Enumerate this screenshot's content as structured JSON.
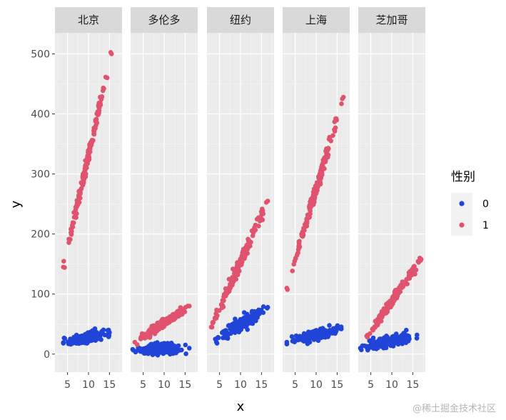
{
  "chart_data": {
    "type": "scatter",
    "facets": [
      "北京",
      "多伦多",
      "纽约",
      "上海",
      "芝加哥"
    ],
    "xlabel": "x",
    "ylabel": "y",
    "xlim": [
      2,
      18
    ],
    "ylim": [
      -30,
      535
    ],
    "x_ticks": [
      5,
      10,
      15
    ],
    "y_ticks": [
      0,
      100,
      200,
      300,
      400,
      500
    ],
    "grid": true,
    "legend": {
      "title": "性别",
      "position": "right",
      "entries": [
        {
          "label": "0",
          "color": "#2144D8"
        },
        {
          "label": "1",
          "color": "#E0536E"
        }
      ]
    },
    "series": [
      {
        "group": "0",
        "color": "#2144D8",
        "panels": [
          {
            "facet": "北京",
            "x_range": [
              4,
              15
            ],
            "y_range": [
              14,
              45
            ],
            "fit": [
              [
                4,
                18
              ],
              [
                15,
                36
              ]
            ],
            "spread": 9
          },
          {
            "facet": "多伦多",
            "x_range": [
              2.5,
              16
            ],
            "y_range": [
              -5,
              25
            ],
            "fit": [
              [
                2.5,
                8
              ],
              [
                16,
                10
              ]
            ],
            "spread": 10
          },
          {
            "facet": "纽约",
            "x_range": [
              4,
              16.5
            ],
            "y_range": [
              18,
              85
            ],
            "fit": [
              [
                4,
                25
              ],
              [
                16.5,
                78
              ]
            ],
            "spread": 12
          },
          {
            "facet": "上海",
            "x_range": [
              3,
              16
            ],
            "y_range": [
              15,
              58
            ],
            "fit": [
              [
                3,
                20
              ],
              [
                16,
                42
              ]
            ],
            "spread": 10
          },
          {
            "facet": "芝加哥",
            "x_range": [
              2.5,
              16
            ],
            "y_range": [
              5,
              40
            ],
            "fit": [
              [
                2.5,
                10
              ],
              [
                16,
                32
              ]
            ],
            "spread": 10
          }
        ]
      },
      {
        "group": "1",
        "color": "#E0536E",
        "panels": [
          {
            "facet": "北京",
            "x_range": [
              4,
              15.5
            ],
            "y_range": [
              142,
              505
            ],
            "fit": [
              [
                4,
                145
              ],
              [
                15.5,
                500
              ]
            ],
            "spread": 12
          },
          {
            "facet": "多伦多",
            "x_range": [
              3,
              16
            ],
            "y_range": [
              15,
              88
            ],
            "fit": [
              [
                3,
                20
              ],
              [
                16,
                80
              ]
            ],
            "spread": 8
          },
          {
            "facet": "纽约",
            "x_range": [
              3,
              16.5
            ],
            "y_range": [
              42,
              258
            ],
            "fit": [
              [
                3,
                45
              ],
              [
                16.5,
                255
              ]
            ],
            "spread": 12
          },
          {
            "facet": "上海",
            "x_range": [
              3,
              16.5
            ],
            "y_range": [
              85,
              430
            ],
            "fit": [
              [
                3,
                110
              ],
              [
                16.5,
                428
              ]
            ],
            "spread": 12
          },
          {
            "facet": "芝加哥",
            "x_range": [
              4,
              17
            ],
            "y_range": [
              25,
              160
            ],
            "fit": [
              [
                4,
                30
              ],
              [
                17,
                158
              ]
            ],
            "spread": 8
          }
        ]
      }
    ]
  },
  "watermark": "@稀土掘金技术社区"
}
